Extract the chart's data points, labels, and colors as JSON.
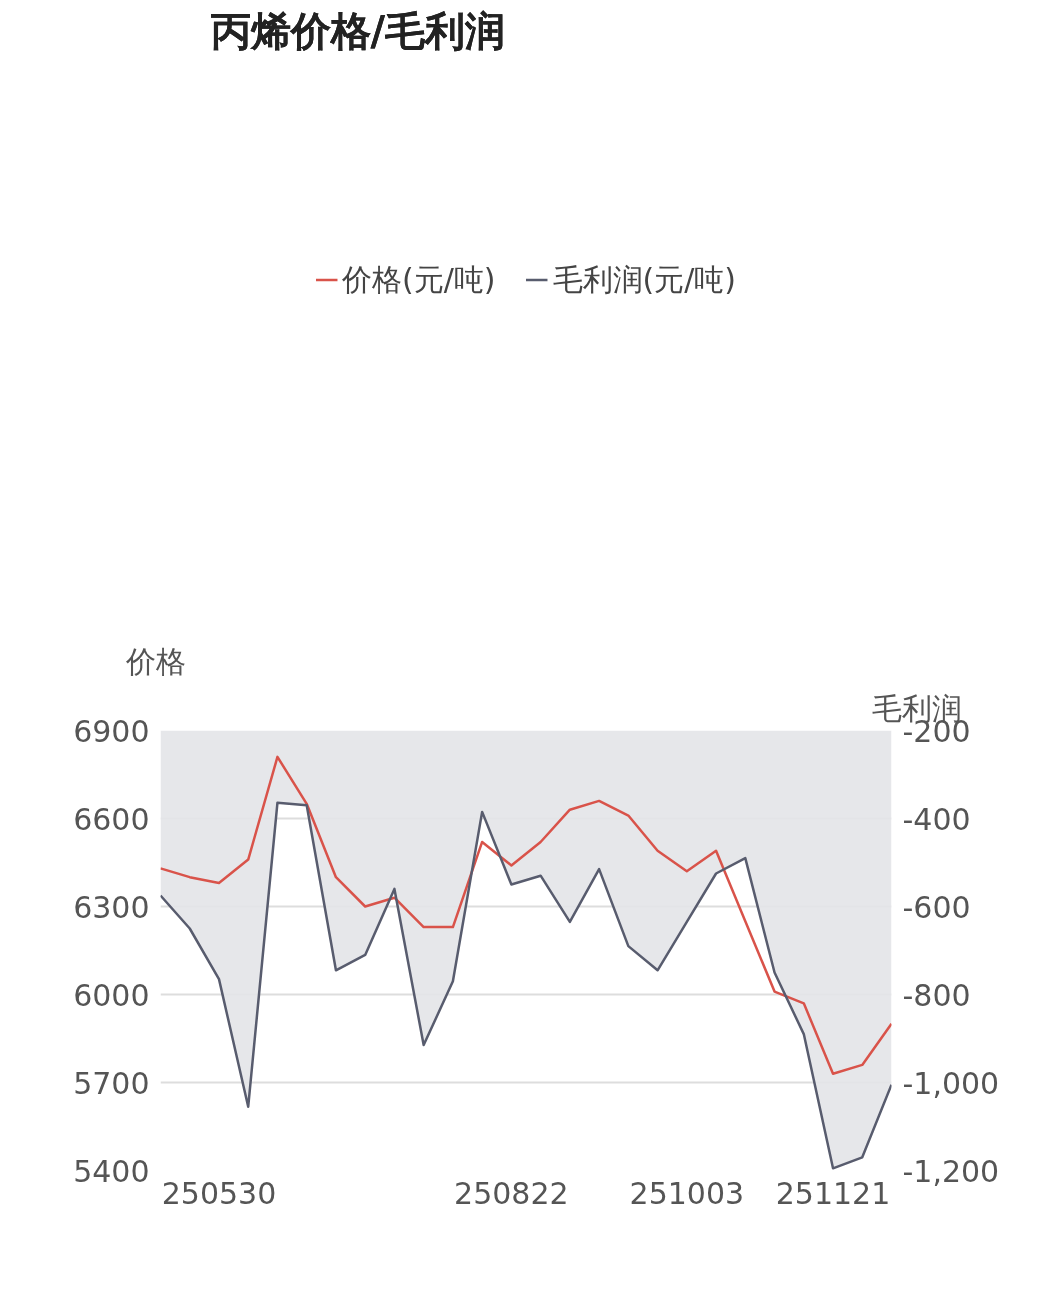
{
  "chart_data": {
    "type": "line",
    "title": "丙烯价格/毛利润",
    "ylabel": "价格",
    "y2label": "毛利润",
    "categories": [
      null,
      null,
      "250530",
      null,
      null,
      null,
      null,
      null,
      null,
      null,
      null,
      null,
      "250822",
      null,
      null,
      null,
      null,
      null,
      "251003",
      null,
      null,
      null,
      null,
      "251121",
      null,
      null
    ],
    "series": [
      {
        "name": "价格(元/吨)",
        "color": "#d9534a",
        "values": [
          6430,
          6400,
          6380,
          6460,
          6810,
          6650,
          6400,
          6300,
          6330,
          6230,
          6230,
          6520,
          6440,
          6520,
          6630,
          6660,
          6610,
          6490,
          6420,
          6490,
          6250,
          6010,
          5970,
          5730,
          5760,
          5900
        ]
      },
      {
        "name": "毛利润(元/吨)",
        "color": "#585c6e",
        "type": "area",
        "axis": "y2",
        "values": [
          -575,
          -650,
          -765,
          -1055,
          -364,
          -370,
          -745,
          -710,
          -560,
          -915,
          -770,
          -385,
          -550,
          -530,
          -635,
          -515,
          -690,
          -745,
          -635,
          -525,
          -490,
          -750,
          -890,
          -1195,
          -1170,
          -1005
        ]
      }
    ],
    "ylim": [
      5400,
      6900
    ],
    "yticks": [
      5400,
      5700,
      6000,
      6300,
      6600,
      6900
    ],
    "y2lim": [
      -1200,
      -200
    ],
    "y2ticks": [
      {
        "value": -1200,
        "label": "-1,200"
      },
      {
        "value": -1000,
        "label": "-1,000"
      },
      {
        "value": -800,
        "label": "-800"
      },
      {
        "value": -600,
        "label": "-600"
      },
      {
        "value": -400,
        "label": "-400"
      },
      {
        "value": -200,
        "label": "-200"
      }
    ],
    "grid": "y",
    "legend": "top",
    "marker": "none",
    "line_style": "solid"
  }
}
